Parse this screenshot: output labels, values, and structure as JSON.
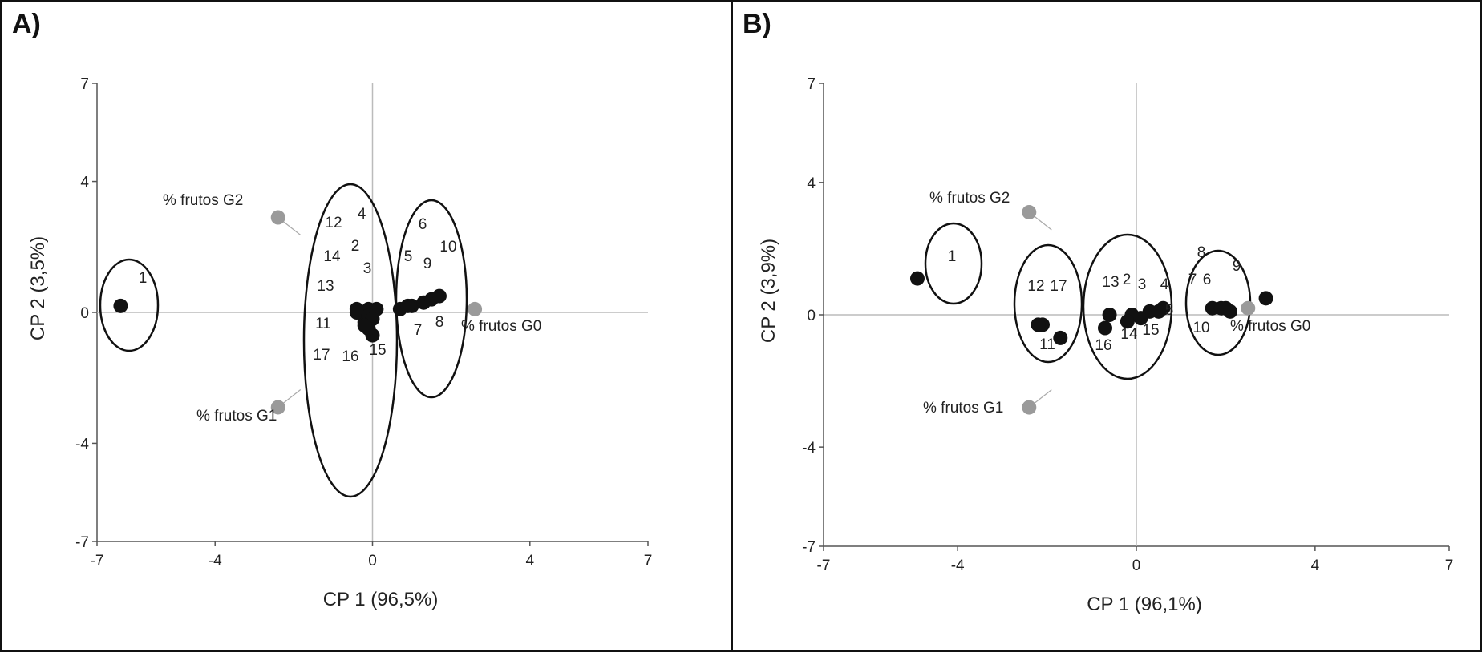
{
  "colors": {
    "point": "#111111",
    "variable": "#9a9a9a",
    "axis": "#bbbbbb",
    "frame": "#111111"
  },
  "chart_data": [
    {
      "type": "scatter",
      "panel_label": "A)",
      "xlabel": "CP 1 (96,5%)",
      "ylabel": "CP 2 (3,5%)",
      "xlim": [
        -7,
        7
      ],
      "ylim": [
        -7,
        7
      ],
      "xticks": [
        "-7",
        "-4",
        "0",
        "4",
        "7"
      ],
      "yticks": [
        "7",
        "4",
        "0",
        "-4",
        "-7"
      ],
      "points": [
        {
          "label": "1",
          "x": -6.4,
          "y": 0.2
        },
        {
          "label": "2",
          "x": -0.4,
          "y": 0.1
        },
        {
          "label": "3",
          "x": -0.1,
          "y": 0.1
        },
        {
          "label": "4",
          "x": 0.1,
          "y": 0.1
        },
        {
          "label": "5",
          "x": 1.0,
          "y": 0.2
        },
        {
          "label": "6",
          "x": 1.3,
          "y": 0.3
        },
        {
          "label": "7",
          "x": 0.7,
          "y": 0.1
        },
        {
          "label": "8",
          "x": 0.9,
          "y": 0.2
        },
        {
          "label": "9",
          "x": 1.5,
          "y": 0.4
        },
        {
          "label": "10",
          "x": 1.7,
          "y": 0.5
        },
        {
          "label": "11",
          "x": -0.2,
          "y": -0.3
        },
        {
          "label": "12",
          "x": -0.4,
          "y": 0.0
        },
        {
          "label": "13",
          "x": -0.1,
          "y": -0.1
        },
        {
          "label": "14",
          "x": 0.0,
          "y": -0.2
        },
        {
          "label": "15",
          "x": 0.0,
          "y": -0.7
        },
        {
          "label": "16",
          "x": -0.1,
          "y": -0.5
        },
        {
          "label": "17",
          "x": -0.2,
          "y": -0.4
        }
      ],
      "variables": [
        {
          "label": "% frutos G2",
          "x": -2.4,
          "y": 2.9
        },
        {
          "label": "% frutos G1",
          "x": -2.4,
          "y": -2.9
        },
        {
          "label": "% frutos G0",
          "x": 2.6,
          "y": 0.1
        }
      ]
    },
    {
      "type": "scatter",
      "panel_label": "B)",
      "xlabel": "CP 1 (96,1%)",
      "ylabel": "CP 2 (3,9%)",
      "xlim": [
        -7,
        7
      ],
      "ylim": [
        -7,
        7
      ],
      "xticks": [
        "-7",
        "-4",
        "0",
        "4",
        "7"
      ],
      "yticks": [
        "7",
        "4",
        "0",
        "-4",
        "-7"
      ],
      "points": [
        {
          "label": "1",
          "x": -4.9,
          "y": 1.1
        },
        {
          "label": "2",
          "x": -0.1,
          "y": 0.0
        },
        {
          "label": "3",
          "x": 0.3,
          "y": 0.1
        },
        {
          "label": "4",
          "x": 0.6,
          "y": 0.2
        },
        {
          "label": "5",
          "x": 0.5,
          "y": 0.1
        },
        {
          "label": "6",
          "x": 2.0,
          "y": 0.2
        },
        {
          "label": "7",
          "x": 1.7,
          "y": 0.2
        },
        {
          "label": "8",
          "x": 1.9,
          "y": 0.2
        },
        {
          "label": "9",
          "x": 2.9,
          "y": 0.5
        },
        {
          "label": "10",
          "x": 2.1,
          "y": 0.1
        },
        {
          "label": "11",
          "x": -2.1,
          "y": -0.3
        },
        {
          "label": "12",
          "x": -2.2,
          "y": -0.3
        },
        {
          "label": "13",
          "x": -0.6,
          "y": 0.0
        },
        {
          "label": "14",
          "x": -0.2,
          "y": -0.2
        },
        {
          "label": "15",
          "x": 0.1,
          "y": -0.1
        },
        {
          "label": "16",
          "x": -0.7,
          "y": -0.4
        },
        {
          "label": "17",
          "x": -1.7,
          "y": -0.7
        }
      ],
      "variables": [
        {
          "label": "% frutos G2",
          "x": -2.4,
          "y": 3.1
        },
        {
          "label": "% frutos G1",
          "x": -2.4,
          "y": -2.8
        },
        {
          "label": "% frutos G0",
          "x": 2.5,
          "y": 0.2
        }
      ]
    }
  ]
}
